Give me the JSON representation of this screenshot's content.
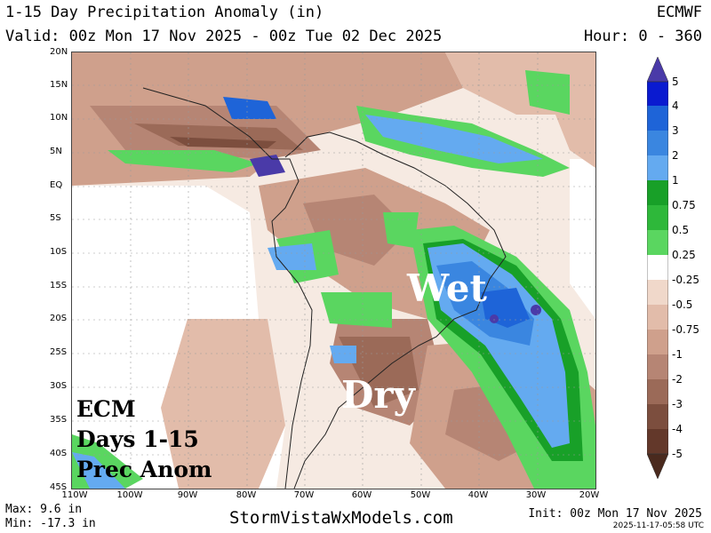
{
  "header": {
    "title": "1-15 Day Precipitation Anomaly (in)",
    "valid": "Valid: 00z Mon 17 Nov 2025 - 00z Tue 02 Dec 2025",
    "model": "ECMWF",
    "hour": "Hour: 0 - 360"
  },
  "map": {
    "lat_labels": [
      "20N",
      "15N",
      "10N",
      "5N",
      "EQ",
      "5S",
      "10S",
      "15S",
      "20S",
      "25S",
      "30S",
      "35S",
      "40S",
      "45S"
    ],
    "lon_labels": [
      "110W",
      "100W",
      "90W",
      "80W",
      "70W",
      "60W",
      "50W",
      "40W",
      "30W",
      "20W"
    ],
    "annotations": {
      "wet": "Wet",
      "dry": "Dry"
    },
    "caption_lines": [
      "ECM",
      "Days 1-15",
      "Prec Anom"
    ]
  },
  "legend": {
    "labels": [
      "5",
      "4",
      "3",
      "2",
      "1",
      "0.75",
      "0.5",
      "0.25",
      "-0.25",
      "-0.5",
      "-0.75",
      "-1",
      "-2",
      "-3",
      "-4",
      "-5"
    ],
    "colors": {
      "dark_blue": "#0a1ad0",
      "blue": "#1e64d8",
      "med_blue": "#3a86e0",
      "light_blue": "#64aaf0",
      "dark_green": "#18a028",
      "green": "#2eb83a",
      "light_green": "#5ad660",
      "light_brown": "#f0d8ca",
      "brown2": "#e2bcaa",
      "brown3": "#cfa08c",
      "brown4": "#b68574",
      "brown5": "#9b6a58",
      "brown6": "#7c4e3e",
      "dark_brown": "#63382a",
      "purple": "#4a3aa8"
    }
  },
  "footer": {
    "max": "Max: 9.6 in",
    "min": "Min: -17.3 in",
    "site": "StormVistaWxModels.com",
    "init": "Init: 00z Mon 17 Nov 2025",
    "stamp": "2025-11-17-05:58 UTC"
  }
}
